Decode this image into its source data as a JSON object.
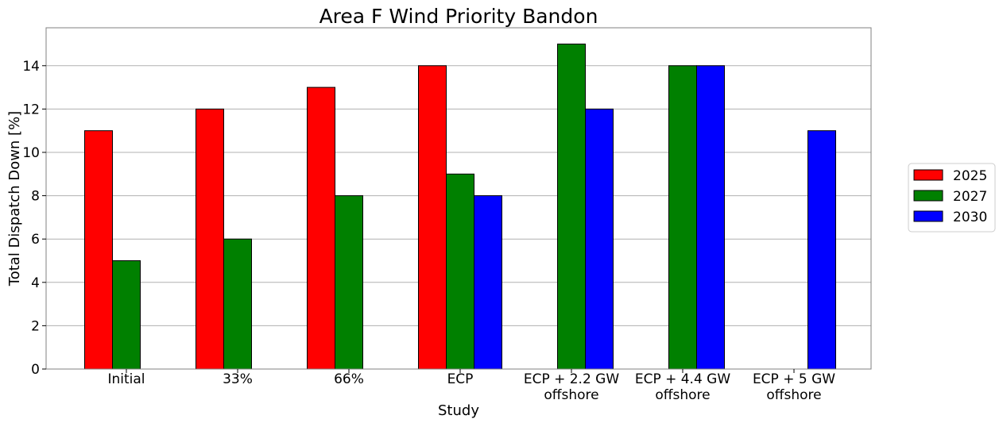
{
  "chart_data": {
    "type": "bar",
    "title": "Area F Wind Priority Bandon",
    "xlabel": "Study",
    "ylabel": "Total Dispatch Down [%]",
    "categories": [
      [
        "Initial"
      ],
      [
        "33%"
      ],
      [
        "66%"
      ],
      [
        "ECP"
      ],
      [
        "ECP + 2.2 GW",
        "offshore"
      ],
      [
        "ECP + 4.4 GW",
        "offshore"
      ],
      [
        "ECP + 5 GW",
        "offshore"
      ]
    ],
    "series": [
      {
        "name": "2025",
        "color": "#ff0000",
        "values": [
          11,
          12,
          13,
          14,
          null,
          null,
          null
        ]
      },
      {
        "name": "2027",
        "color": "#008000",
        "values": [
          5,
          6,
          8,
          9,
          15,
          14,
          null
        ]
      },
      {
        "name": "2030",
        "color": "#0000ff",
        "values": [
          null,
          null,
          null,
          8,
          12,
          14,
          11
        ]
      }
    ],
    "ylim": [
      0,
      15.75
    ],
    "yticks": [
      0,
      2,
      4,
      6,
      8,
      10,
      12,
      14
    ],
    "grid": "horizontal",
    "legend_position": "right"
  }
}
